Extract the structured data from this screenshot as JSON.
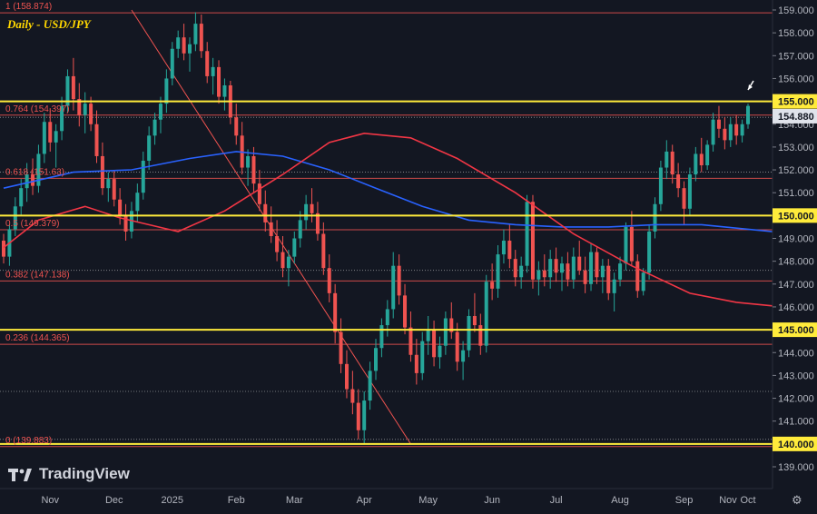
{
  "title": "Daily - USD/JPY",
  "brand": "TradingView",
  "icons": {
    "brand_logo": "tradingview-logo-icon",
    "settings": "gear-icon",
    "annotation": "arrow-icon"
  },
  "colors": {
    "background": "#131722",
    "up": "#26a69a",
    "down": "#ef5350",
    "ma_fast": "#2962ff",
    "ma_slow": "#f23645",
    "horizontal_levels": "#ffeb3b",
    "fib": "#ef5350",
    "trendline": "#ef5350"
  },
  "chart_data": {
    "type": "candlestick",
    "symbol": "USD/JPY",
    "timeframe": "Daily",
    "ylim": [
      138.2,
      159.4
    ],
    "y_ticks": [
      "139.000",
      "140.000",
      "141.000",
      "142.000",
      "143.000",
      "144.000",
      "145.000",
      "146.000",
      "147.000",
      "148.000",
      "149.000",
      "150.000",
      "151.000",
      "152.000",
      "153.000",
      "154.000",
      "155.000",
      "156.000",
      "157.000",
      "158.000",
      "159.000"
    ],
    "x_ticks": [
      "Nov",
      "Dec",
      "2025",
      "Feb",
      "Mar",
      "Apr",
      "May",
      "Jun",
      "Jul",
      "Aug",
      "Sep",
      "Oct",
      "Nov"
    ],
    "price_labels": {
      "current": "154.880",
      "levels": [
        "155.000",
        "150.000",
        "145.000",
        "140.000"
      ]
    },
    "horizontal_levels": [
      155.0,
      150.0,
      145.0,
      140.0
    ],
    "fib_levels": [
      {
        "label": "1 (158.874)",
        "value": 158.874
      },
      {
        "label": "0.764 (154.397)",
        "value": 154.397
      },
      {
        "label": "0.618 (151.63)",
        "value": 151.63
      },
      {
        "label": "0.5 (149.379)",
        "value": 149.379
      },
      {
        "label": "0.382 (147.138)",
        "value": 147.138
      },
      {
        "label": "0.236 (144.365)",
        "value": 144.365
      },
      {
        "label": "0 (139.883)",
        "value": 139.883
      }
    ],
    "dotted_levels": [
      154.3,
      151.9,
      147.6,
      142.3,
      140.2
    ],
    "candles": [
      [
        148.9,
        149.2,
        147.9,
        148.2
      ],
      [
        148.2,
        149.6,
        147.8,
        149.4
      ],
      [
        149.4,
        150.8,
        149.1,
        150.4
      ],
      [
        150.4,
        151.6,
        150.0,
        151.2
      ],
      [
        151.2,
        152.3,
        150.6,
        151.8
      ],
      [
        151.8,
        152.5,
        150.9,
        151.3
      ],
      [
        151.3,
        153.1,
        151.0,
        152.7
      ],
      [
        152.7,
        154.5,
        152.3,
        154.1
      ],
      [
        154.1,
        154.7,
        152.8,
        153.2
      ],
      [
        153.2,
        154.0,
        152.1,
        153.7
      ],
      [
        153.7,
        155.2,
        153.3,
        154.8
      ],
      [
        154.8,
        156.4,
        154.5,
        156.1
      ],
      [
        156.1,
        156.9,
        154.6,
        155.1
      ],
      [
        155.1,
        155.8,
        153.9,
        154.4
      ],
      [
        154.4,
        155.4,
        153.6,
        154.9
      ],
      [
        154.9,
        155.2,
        153.7,
        154.0
      ],
      [
        154.0,
        154.6,
        152.3,
        152.6
      ],
      [
        152.6,
        153.2,
        150.9,
        151.2
      ],
      [
        151.2,
        151.9,
        150.6,
        151.6
      ],
      [
        151.6,
        152.0,
        150.4,
        150.7
      ],
      [
        150.7,
        151.2,
        149.6,
        150.0
      ],
      [
        150.0,
        150.5,
        148.9,
        149.3
      ],
      [
        149.3,
        150.6,
        149.0,
        150.2
      ],
      [
        150.2,
        151.4,
        149.7,
        151.0
      ],
      [
        151.0,
        152.8,
        150.7,
        152.4
      ],
      [
        152.4,
        153.9,
        152.0,
        153.5
      ],
      [
        153.5,
        154.5,
        153.1,
        154.2
      ],
      [
        154.2,
        155.2,
        153.6,
        154.9
      ],
      [
        154.9,
        156.4,
        154.5,
        156.0
      ],
      [
        156.0,
        157.6,
        155.7,
        157.3
      ],
      [
        157.3,
        158.1,
        156.9,
        157.8
      ],
      [
        157.8,
        158.4,
        156.8,
        157.1
      ],
      [
        157.1,
        157.8,
        156.3,
        157.5
      ],
      [
        157.5,
        158.9,
        157.2,
        158.4
      ],
      [
        158.4,
        158.8,
        156.9,
        157.2
      ],
      [
        157.2,
        157.6,
        155.8,
        156.1
      ],
      [
        156.1,
        156.9,
        155.3,
        156.5
      ],
      [
        156.5,
        156.8,
        154.9,
        155.2
      ],
      [
        155.2,
        156.0,
        154.6,
        155.7
      ],
      [
        155.7,
        155.9,
        154.0,
        154.3
      ],
      [
        154.3,
        154.9,
        153.1,
        153.5
      ],
      [
        153.5,
        154.1,
        151.8,
        152.1
      ],
      [
        152.1,
        152.9,
        151.3,
        152.6
      ],
      [
        152.6,
        153.0,
        151.0,
        151.4
      ],
      [
        151.4,
        152.0,
        150.2,
        150.5
      ],
      [
        150.5,
        151.1,
        149.3,
        149.7
      ],
      [
        149.7,
        150.4,
        148.8,
        149.1
      ],
      [
        149.1,
        149.8,
        148.0,
        148.4
      ],
      [
        148.4,
        149.1,
        147.3,
        147.7
      ],
      [
        147.7,
        148.5,
        146.9,
        148.2
      ],
      [
        148.2,
        149.3,
        147.9,
        149.0
      ],
      [
        149.0,
        150.2,
        148.6,
        149.8
      ],
      [
        149.8,
        150.9,
        149.4,
        150.5
      ],
      [
        150.5,
        151.2,
        149.7,
        150.1
      ],
      [
        150.1,
        150.6,
        148.9,
        149.2
      ],
      [
        149.2,
        149.7,
        147.4,
        147.7
      ],
      [
        147.7,
        148.3,
        146.2,
        146.6
      ],
      [
        146.6,
        147.0,
        144.4,
        144.9
      ],
      [
        144.9,
        145.5,
        143.1,
        143.5
      ],
      [
        143.5,
        144.1,
        142.0,
        142.4
      ],
      [
        142.4,
        143.2,
        141.3,
        141.8
      ],
      [
        141.8,
        142.4,
        140.2,
        140.6
      ],
      [
        140.6,
        142.3,
        140.0,
        141.9
      ],
      [
        141.9,
        143.6,
        141.5,
        143.2
      ],
      [
        143.2,
        144.6,
        142.8,
        144.2
      ],
      [
        144.2,
        145.5,
        143.8,
        145.2
      ],
      [
        145.2,
        146.3,
        144.7,
        145.9
      ],
      [
        145.9,
        148.4,
        145.5,
        147.8
      ],
      [
        147.8,
        148.3,
        146.1,
        146.5
      ],
      [
        146.5,
        147.0,
        144.8,
        145.1
      ],
      [
        145.1,
        145.8,
        143.6,
        143.9
      ],
      [
        143.9,
        144.6,
        142.6,
        143.1
      ],
      [
        143.1,
        144.9,
        142.8,
        144.5
      ],
      [
        144.5,
        145.6,
        143.9,
        145.0
      ],
      [
        145.0,
        145.4,
        143.4,
        143.8
      ],
      [
        143.8,
        144.7,
        143.3,
        144.3
      ],
      [
        144.3,
        145.8,
        143.9,
        145.5
      ],
      [
        145.5,
        146.2,
        144.6,
        144.9
      ],
      [
        144.9,
        145.3,
        143.2,
        143.6
      ],
      [
        143.6,
        144.5,
        142.8,
        144.1
      ],
      [
        144.1,
        145.9,
        143.8,
        145.6
      ],
      [
        145.6,
        146.6,
        144.9,
        145.2
      ],
      [
        145.2,
        145.7,
        143.9,
        144.3
      ],
      [
        144.3,
        147.4,
        144.0,
        147.1
      ],
      [
        147.1,
        147.9,
        146.3,
        146.8
      ],
      [
        146.8,
        148.7,
        146.4,
        148.3
      ],
      [
        148.3,
        149.4,
        147.9,
        148.9
      ],
      [
        148.9,
        149.6,
        147.7,
        148.1
      ],
      [
        148.1,
        148.5,
        146.9,
        147.3
      ],
      [
        147.3,
        148.2,
        146.8,
        147.8
      ],
      [
        147.8,
        150.9,
        147.5,
        150.6
      ],
      [
        150.6,
        150.9,
        146.8,
        147.2
      ],
      [
        147.2,
        148.0,
        146.5,
        147.6
      ],
      [
        147.6,
        148.3,
        146.9,
        147.3
      ],
      [
        147.3,
        148.5,
        146.8,
        148.1
      ],
      [
        148.1,
        148.6,
        147.1,
        147.5
      ],
      [
        147.5,
        148.2,
        146.7,
        147.9
      ],
      [
        147.9,
        148.4,
        146.9,
        147.2
      ],
      [
        147.2,
        148.6,
        146.8,
        148.2
      ],
      [
        148.2,
        148.9,
        147.4,
        147.6
      ],
      [
        147.6,
        148.2,
        146.6,
        147.0
      ],
      [
        147.0,
        148.8,
        146.7,
        148.4
      ],
      [
        148.4,
        148.6,
        147.0,
        147.3
      ],
      [
        147.3,
        148.1,
        146.6,
        147.8
      ],
      [
        147.8,
        148.1,
        146.3,
        146.6
      ],
      [
        146.6,
        147.5,
        145.8,
        147.2
      ],
      [
        147.2,
        148.2,
        146.9,
        147.9
      ],
      [
        147.9,
        149.7,
        147.6,
        149.5
      ],
      [
        149.5,
        150.2,
        147.8,
        148.0
      ],
      [
        148.0,
        148.3,
        146.4,
        146.7
      ],
      [
        146.7,
        147.7,
        146.5,
        147.5
      ],
      [
        147.5,
        149.6,
        147.2,
        149.3
      ],
      [
        149.3,
        150.8,
        149.0,
        150.5
      ],
      [
        150.5,
        152.4,
        150.2,
        152.1
      ],
      [
        152.1,
        153.3,
        151.6,
        152.8
      ],
      [
        152.8,
        153.1,
        151.4,
        151.8
      ],
      [
        151.8,
        152.3,
        150.8,
        151.2
      ],
      [
        151.2,
        151.5,
        149.6,
        150.3
      ],
      [
        150.3,
        152.1,
        150.0,
        151.8
      ],
      [
        151.8,
        153.0,
        151.5,
        152.7
      ],
      [
        152.7,
        153.4,
        151.9,
        152.2
      ],
      [
        152.2,
        153.3,
        152.0,
        153.1
      ],
      [
        153.1,
        154.5,
        152.8,
        154.2
      ],
      [
        154.2,
        154.8,
        153.4,
        153.8
      ],
      [
        153.8,
        154.3,
        152.9,
        153.3
      ],
      [
        153.3,
        154.3,
        153.0,
        154.0
      ],
      [
        154.0,
        154.4,
        153.1,
        153.5
      ],
      [
        153.5,
        154.2,
        153.2,
        154.0
      ],
      [
        154.0,
        154.9,
        153.8,
        154.8
      ]
    ],
    "ma_fast": [
      [
        0,
        151.2
      ],
      [
        12,
        151.9
      ],
      [
        22,
        152.0
      ],
      [
        32,
        152.5
      ],
      [
        40,
        152.8
      ],
      [
        48,
        152.6
      ],
      [
        56,
        152.0
      ],
      [
        64,
        151.2
      ],
      [
        72,
        150.4
      ],
      [
        80,
        149.8
      ],
      [
        88,
        149.6
      ],
      [
        96,
        149.5
      ],
      [
        104,
        149.5
      ],
      [
        112,
        149.6
      ],
      [
        120,
        149.6
      ],
      [
        128,
        149.4
      ],
      [
        136,
        149.2
      ],
      [
        144,
        148.9
      ],
      [
        152,
        148.5
      ],
      [
        160,
        148.1
      ],
      [
        168,
        147.9
      ],
      [
        178,
        147.7
      ]
    ],
    "ma_slow": [
      [
        0,
        148.6
      ],
      [
        6,
        149.8
      ],
      [
        14,
        150.4
      ],
      [
        20,
        149.9
      ],
      [
        30,
        149.3
      ],
      [
        38,
        150.2
      ],
      [
        48,
        151.8
      ],
      [
        56,
        153.2
      ],
      [
        62,
        153.6
      ],
      [
        70,
        153.4
      ],
      [
        78,
        152.5
      ],
      [
        88,
        151.0
      ],
      [
        98,
        149.2
      ],
      [
        108,
        147.8
      ],
      [
        118,
        146.6
      ],
      [
        126,
        146.2
      ],
      [
        134,
        146.0
      ],
      [
        142,
        146.0
      ],
      [
        150,
        146.5
      ],
      [
        158,
        147.3
      ],
      [
        166,
        148.1
      ],
      [
        172,
        148.7
      ],
      [
        178,
        149.1
      ]
    ],
    "trendline": {
      "from": [
        22,
        159.0
      ],
      "to": [
        70,
        140.0
      ]
    }
  }
}
